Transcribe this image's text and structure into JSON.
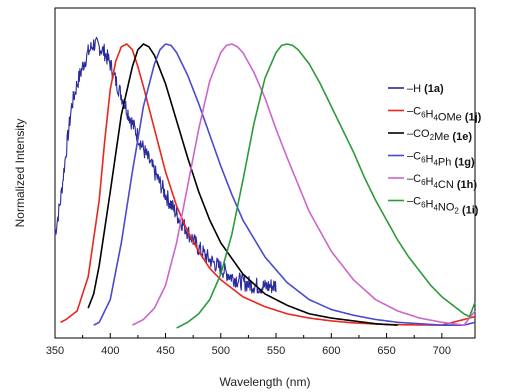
{
  "chart_data": {
    "type": "line",
    "xlabel": "Wavelength (nm)",
    "ylabel": "Normalized Intensity",
    "xlim": [
      350,
      730
    ],
    "ylim": [
      0,
      1.05
    ],
    "x_ticks": [
      "350",
      "400",
      "450",
      "500",
      "550",
      "600",
      "650",
      "700"
    ],
    "x_tick_values": [
      350,
      400,
      450,
      500,
      550,
      600,
      650,
      700
    ],
    "grid": false,
    "legend_position": "right",
    "series": [
      {
        "name": "-H",
        "label_parts": [
          {
            "t": "–H "
          },
          {
            "t": "(1a)",
            "b": true
          }
        ],
        "color": "#2b2b9c",
        "noisy": true,
        "x": [
          350,
          355,
          360,
          365,
          370,
          375,
          380,
          385,
          390,
          395,
          400,
          405,
          410,
          420,
          430,
          440,
          450,
          460,
          470,
          480,
          490,
          500,
          510,
          520,
          530,
          540,
          550
        ],
        "y": [
          0.33,
          0.45,
          0.62,
          0.78,
          0.86,
          0.92,
          0.97,
          1.0,
          0.99,
          0.97,
          0.93,
          0.87,
          0.82,
          0.72,
          0.63,
          0.55,
          0.47,
          0.4,
          0.34,
          0.28,
          0.24,
          0.21,
          0.18,
          0.16,
          0.15,
          0.145,
          0.15
        ]
      },
      {
        "name": "-C6H4OMe",
        "label_parts": [
          {
            "t": "–C"
          },
          {
            "t": "6",
            "sub": true
          },
          {
            "t": "H"
          },
          {
            "t": "4",
            "sub": true
          },
          {
            "t": "OMe "
          },
          {
            "t": "(1j)",
            "b": true
          }
        ],
        "color": "#e8281e",
        "x": [
          355,
          360,
          370,
          380,
          390,
          395,
          400,
          405,
          410,
          415,
          420,
          425,
          430,
          440,
          450,
          460,
          470,
          480,
          490,
          500,
          520,
          540,
          560,
          580,
          600,
          620,
          650,
          700,
          730
        ],
        "y": [
          0.02,
          0.03,
          0.06,
          0.18,
          0.45,
          0.66,
          0.84,
          0.94,
          0.99,
          1.0,
          0.98,
          0.92,
          0.85,
          0.7,
          0.55,
          0.43,
          0.34,
          0.27,
          0.21,
          0.17,
          0.11,
          0.075,
          0.05,
          0.035,
          0.025,
          0.018,
          0.012,
          0.01,
          0.04
        ]
      },
      {
        "name": "-CO2Me",
        "label_parts": [
          {
            "t": "–CO"
          },
          {
            "t": "2",
            "sub": true
          },
          {
            "t": "Me "
          },
          {
            "t": "(1e)",
            "b": true
          }
        ],
        "color": "#000000",
        "x": [
          380,
          385,
          390,
          400,
          410,
          420,
          425,
          430,
          435,
          440,
          450,
          460,
          470,
          480,
          490,
          500,
          520,
          540,
          560,
          580,
          600,
          620,
          640,
          660
        ],
        "y": [
          0.07,
          0.12,
          0.22,
          0.48,
          0.75,
          0.92,
          0.98,
          1.0,
          0.99,
          0.96,
          0.86,
          0.73,
          0.6,
          0.48,
          0.38,
          0.3,
          0.19,
          0.12,
          0.08,
          0.05,
          0.035,
          0.025,
          0.015,
          0.01
        ]
      },
      {
        "name": "-C6H4Ph",
        "label_parts": [
          {
            "t": "–C"
          },
          {
            "t": "6",
            "sub": true
          },
          {
            "t": "H"
          },
          {
            "t": "4",
            "sub": true
          },
          {
            "t": "Ph "
          },
          {
            "t": "(1g)",
            "b": true
          }
        ],
        "color": "#4a4ad0",
        "x": [
          385,
          390,
          400,
          410,
          420,
          430,
          440,
          445,
          450,
          455,
          460,
          470,
          480,
          490,
          500,
          510,
          520,
          540,
          560,
          580,
          600,
          620,
          640,
          660,
          680,
          700,
          720,
          730
        ],
        "y": [
          0.01,
          0.02,
          0.1,
          0.3,
          0.55,
          0.78,
          0.93,
          0.98,
          1.0,
          0.995,
          0.97,
          0.89,
          0.79,
          0.68,
          0.57,
          0.47,
          0.38,
          0.25,
          0.16,
          0.1,
          0.065,
          0.045,
          0.03,
          0.02,
          0.015,
          0.01,
          0.01,
          0.02
        ]
      },
      {
        "name": "-C6H4CN",
        "label_parts": [
          {
            "t": "–C"
          },
          {
            "t": "6",
            "sub": true
          },
          {
            "t": "H"
          },
          {
            "t": "4",
            "sub": true
          },
          {
            "t": "CN "
          },
          {
            "t": "(1h)",
            "b": true
          }
        ],
        "color": "#cc66cc",
        "x": [
          420,
          430,
          440,
          450,
          460,
          470,
          480,
          490,
          500,
          505,
          510,
          515,
          520,
          530,
          540,
          550,
          560,
          580,
          600,
          620,
          640,
          660,
          680,
          700,
          720,
          730
        ],
        "y": [
          0.01,
          0.03,
          0.07,
          0.15,
          0.3,
          0.5,
          0.7,
          0.87,
          0.97,
          0.995,
          1.0,
          0.99,
          0.97,
          0.9,
          0.81,
          0.7,
          0.6,
          0.41,
          0.27,
          0.17,
          0.1,
          0.06,
          0.035,
          0.02,
          0.01,
          0.06
        ]
      },
      {
        "name": "-C6H4NO2",
        "label_parts": [
          {
            "t": "–C"
          },
          {
            "t": "6",
            "sub": true
          },
          {
            "t": "H"
          },
          {
            "t": "4",
            "sub": true
          },
          {
            "t": "NO"
          },
          {
            "t": "2",
            "sub": true
          },
          {
            "t": " "
          },
          {
            "t": "(1i)",
            "b": true
          }
        ],
        "color": "#2e9a3a",
        "x": [
          460,
          470,
          480,
          490,
          500,
          510,
          520,
          530,
          540,
          550,
          555,
          560,
          565,
          570,
          580,
          590,
          600,
          610,
          620,
          630,
          640,
          650,
          660,
          670,
          680,
          690,
          700,
          710,
          720,
          725,
          730
        ],
        "y": [
          0.0,
          0.02,
          0.05,
          0.1,
          0.19,
          0.33,
          0.52,
          0.72,
          0.88,
          0.97,
          0.995,
          1.0,
          0.995,
          0.98,
          0.93,
          0.86,
          0.78,
          0.7,
          0.62,
          0.53,
          0.45,
          0.38,
          0.31,
          0.25,
          0.2,
          0.15,
          0.11,
          0.08,
          0.05,
          0.04,
          0.09
        ]
      }
    ]
  }
}
